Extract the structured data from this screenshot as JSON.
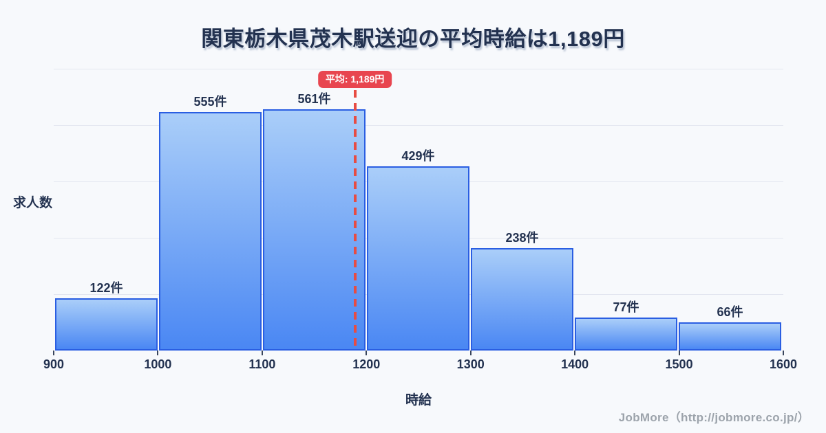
{
  "title": "関東栃木県茂木駅送迎の平均時給は1,189円",
  "footer": {
    "credit": "JobMore（http://jobmore.co.jp/）"
  },
  "chart_data": {
    "type": "bar",
    "title": "関東栃木県茂木駅送迎の平均時給は1,189円",
    "xlabel": "時給",
    "ylabel": "求人数",
    "x_ticks": [
      "900",
      "1000",
      "1100",
      "1200",
      "1300",
      "1400",
      "1500",
      "1600"
    ],
    "xlim": [
      900,
      1600
    ],
    "ylim": [
      0,
      656
    ],
    "grid_divisions": 5,
    "legend_position": "none",
    "bins": [
      {
        "range": [
          900,
          1000
        ],
        "count": 122,
        "label": "122件"
      },
      {
        "range": [
          1000,
          1100
        ],
        "count": 555,
        "label": "555件"
      },
      {
        "range": [
          1100,
          1200
        ],
        "count": 561,
        "label": "561件"
      },
      {
        "range": [
          1200,
          1300
        ],
        "count": 429,
        "label": "429件"
      },
      {
        "range": [
          1300,
          1400
        ],
        "count": 238,
        "label": "238件"
      },
      {
        "range": [
          1400,
          1500
        ],
        "count": 77,
        "label": "77件"
      },
      {
        "range": [
          1500,
          1600
        ],
        "count": 66,
        "label": "66件"
      }
    ],
    "average": {
      "value": 1189,
      "label": "平均: 1,189円"
    },
    "colors": {
      "background": "#f7f9fc",
      "grid": "#e3e6f0",
      "text": "#233250",
      "bar_fill_top": "#aacef9",
      "bar_fill_bottom": "#4a87f3",
      "bar_border": "#2a5ee2",
      "average_line": "#e74c43",
      "average_badge_bg": "#e8454f",
      "footer_text": "#9ca3ab"
    }
  }
}
